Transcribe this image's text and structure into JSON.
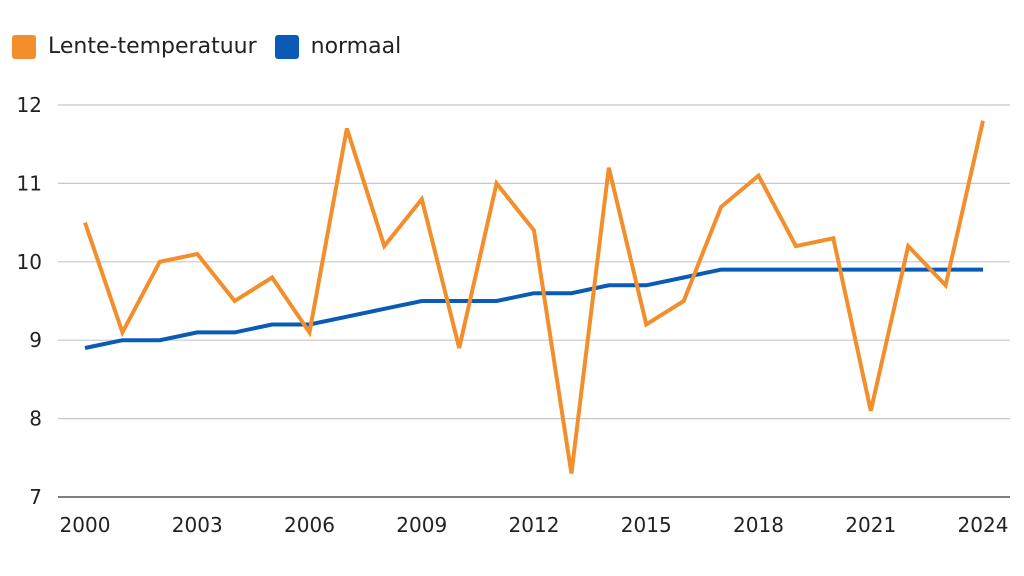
{
  "legend": {
    "lente_label": "Lente-temperatuur",
    "normaal_label": "normaal"
  },
  "colors": {
    "lente": "#f28e2b",
    "normaal": "#0a5bb5",
    "grid": "#c8c8c8",
    "axis": "#555555"
  },
  "chart_data": {
    "type": "line",
    "x": [
      2000,
      2001,
      2002,
      2003,
      2004,
      2005,
      2006,
      2007,
      2008,
      2009,
      2010,
      2011,
      2012,
      2013,
      2014,
      2015,
      2016,
      2017,
      2018,
      2019,
      2020,
      2021,
      2022,
      2023,
      2024
    ],
    "series": [
      {
        "name": "Lente-temperatuur",
        "values": [
          10.5,
          9.1,
          10.0,
          10.1,
          9.5,
          9.8,
          9.1,
          11.7,
          10.2,
          10.8,
          8.9,
          11.0,
          10.4,
          7.3,
          11.2,
          9.2,
          9.5,
          10.7,
          11.1,
          10.2,
          10.3,
          8.1,
          10.2,
          9.7,
          11.8
        ]
      },
      {
        "name": "normaal",
        "values": [
          8.9,
          9.0,
          9.0,
          9.1,
          9.1,
          9.2,
          9.2,
          9.3,
          9.4,
          9.5,
          9.5,
          9.5,
          9.6,
          9.6,
          9.7,
          9.7,
          9.8,
          9.9,
          9.9,
          9.9,
          9.9,
          9.9,
          9.9,
          9.9,
          9.9
        ]
      }
    ],
    "xticks": [
      "2000",
      "2003",
      "2006",
      "2009",
      "2012",
      "2015",
      "2018",
      "2021",
      "2024"
    ],
    "yticks": [
      "7",
      "8",
      "9",
      "10",
      "11",
      "12"
    ],
    "ylim": [
      7,
      12
    ],
    "xlim": [
      2000,
      2024
    ],
    "grid": true,
    "legend_position": "top-left"
  }
}
